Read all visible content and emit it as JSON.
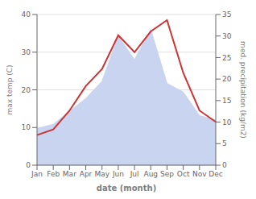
{
  "chart_data": {
    "type": "line",
    "xlabel": "date (month)",
    "ylabel": "max temp (C)",
    "y2label": "med. precipitation (kg/m2)",
    "categories": [
      "Jan",
      "Feb",
      "Mar",
      "Apr",
      "May",
      "Jun",
      "Jul",
      "Aug",
      "Sep",
      "Oct",
      "Nov",
      "Dec"
    ],
    "series": [
      {
        "type": "area",
        "axis": "y2",
        "color": "#c8d4f0",
        "values": [
          8.5,
          9.5,
          12.5,
          15.5,
          19.5,
          30.0,
          24.5,
          31.5,
          19.0,
          17.0,
          11.5,
          10.5
        ]
      },
      {
        "type": "line",
        "axis": "y",
        "color": "#cc3333",
        "values": [
          8.0,
          9.5,
          14.5,
          21.0,
          25.5,
          34.5,
          30.0,
          35.5,
          38.5,
          24.5,
          14.5,
          11.5
        ]
      }
    ],
    "ylim": [
      0,
      40
    ],
    "yticks": [
      0,
      10,
      20,
      30,
      40
    ],
    "y2lim": [
      0,
      35
    ],
    "y2ticks": [
      0,
      5,
      10,
      15,
      20,
      25,
      30,
      35
    ],
    "grid": true
  }
}
